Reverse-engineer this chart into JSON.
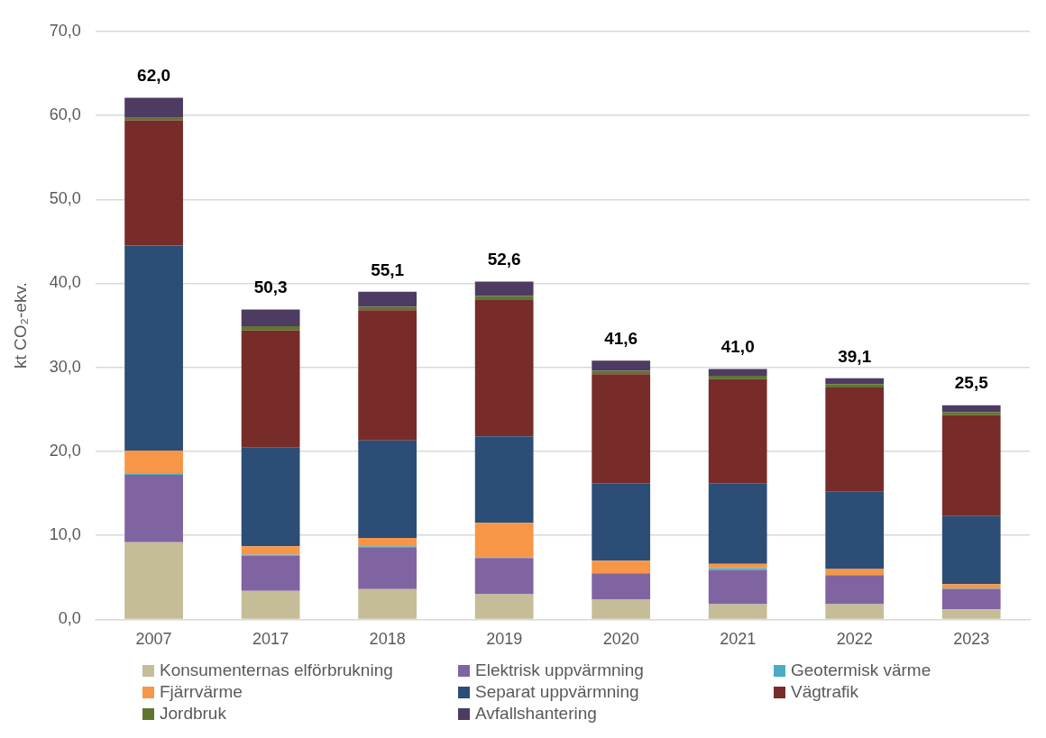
{
  "chart_data": {
    "type": "bar",
    "stacked": true,
    "ylabel": "kt CO₂-ekv.",
    "categories": [
      "2007",
      "2017",
      "2018",
      "2019",
      "2020",
      "2021",
      "2022",
      "2023"
    ],
    "series": [
      {
        "name": "Konsumenternas elförbrukning",
        "color": "#c4bd97",
        "values": [
          9.2,
          3.4,
          3.6,
          3.0,
          2.4,
          1.8,
          1.8,
          1.2
        ]
      },
      {
        "name": "Elektrisk uppvärmning",
        "color": "#8064a2",
        "values": [
          8.0,
          4.2,
          5.0,
          4.3,
          3.0,
          4.1,
          3.4,
          2.4
        ]
      },
      {
        "name": "Geotermisk värme",
        "color": "#4bacc6",
        "values": [
          0.1,
          0.1,
          0.1,
          0.1,
          0.1,
          0.2,
          0.1,
          0.1
        ]
      },
      {
        "name": "Fjärrvärme",
        "color": "#f79646",
        "values": [
          2.8,
          1.0,
          1.0,
          4.1,
          1.5,
          0.5,
          0.7,
          0.5
        ]
      },
      {
        "name": "Separat uppvärmning",
        "color": "#2c4d75",
        "values": [
          24.4,
          11.8,
          11.6,
          10.3,
          9.2,
          9.6,
          9.2,
          8.1
        ]
      },
      {
        "name": "Vägtrafik",
        "color": "#772c2a",
        "values": [
          14.9,
          13.9,
          15.5,
          16.3,
          13.0,
          12.4,
          12.4,
          12.0
        ]
      },
      {
        "name": "Jordbruk",
        "color": "#5f7530",
        "values": [
          0.3,
          0.5,
          0.4,
          0.4,
          0.4,
          0.4,
          0.4,
          0.4
        ]
      },
      {
        "name": "Avfallshantering",
        "color": "#4d3b62",
        "values": [
          2.4,
          2.0,
          1.8,
          1.7,
          1.2,
          0.8,
          0.7,
          0.8
        ]
      }
    ],
    "annotations": [
      {
        "text": "62,0",
        "x": "2007",
        "y": 62.1
      },
      {
        "text": "50,3",
        "x": "2017",
        "y": 36.9
      },
      {
        "text": "55,1",
        "x": "2018",
        "y": 39.0
      },
      {
        "text": "52,6",
        "x": "2019",
        "y": 40.2
      },
      {
        "text": "41,6",
        "x": "2020",
        "y": 30.8
      },
      {
        "text": "41,0",
        "x": "2021",
        "y": 29.8
      },
      {
        "text": "39,1",
        "x": "2022",
        "y": 28.7
      },
      {
        "text": "25,5",
        "x": "2023",
        "y": 25.5
      }
    ],
    "ylim": [
      0,
      70
    ],
    "yticks": [
      {
        "value": 0,
        "label": "0,0"
      },
      {
        "value": 10,
        "label": "10,0"
      },
      {
        "value": 20,
        "label": "20,0"
      },
      {
        "value": 30,
        "label": "30,0"
      },
      {
        "value": 40,
        "label": "40,0"
      },
      {
        "value": 50,
        "label": "50,0"
      },
      {
        "value": 60,
        "label": "60,0"
      },
      {
        "value": 70,
        "label": "70,0"
      }
    ],
    "grid": "y",
    "legend": "bottom"
  }
}
